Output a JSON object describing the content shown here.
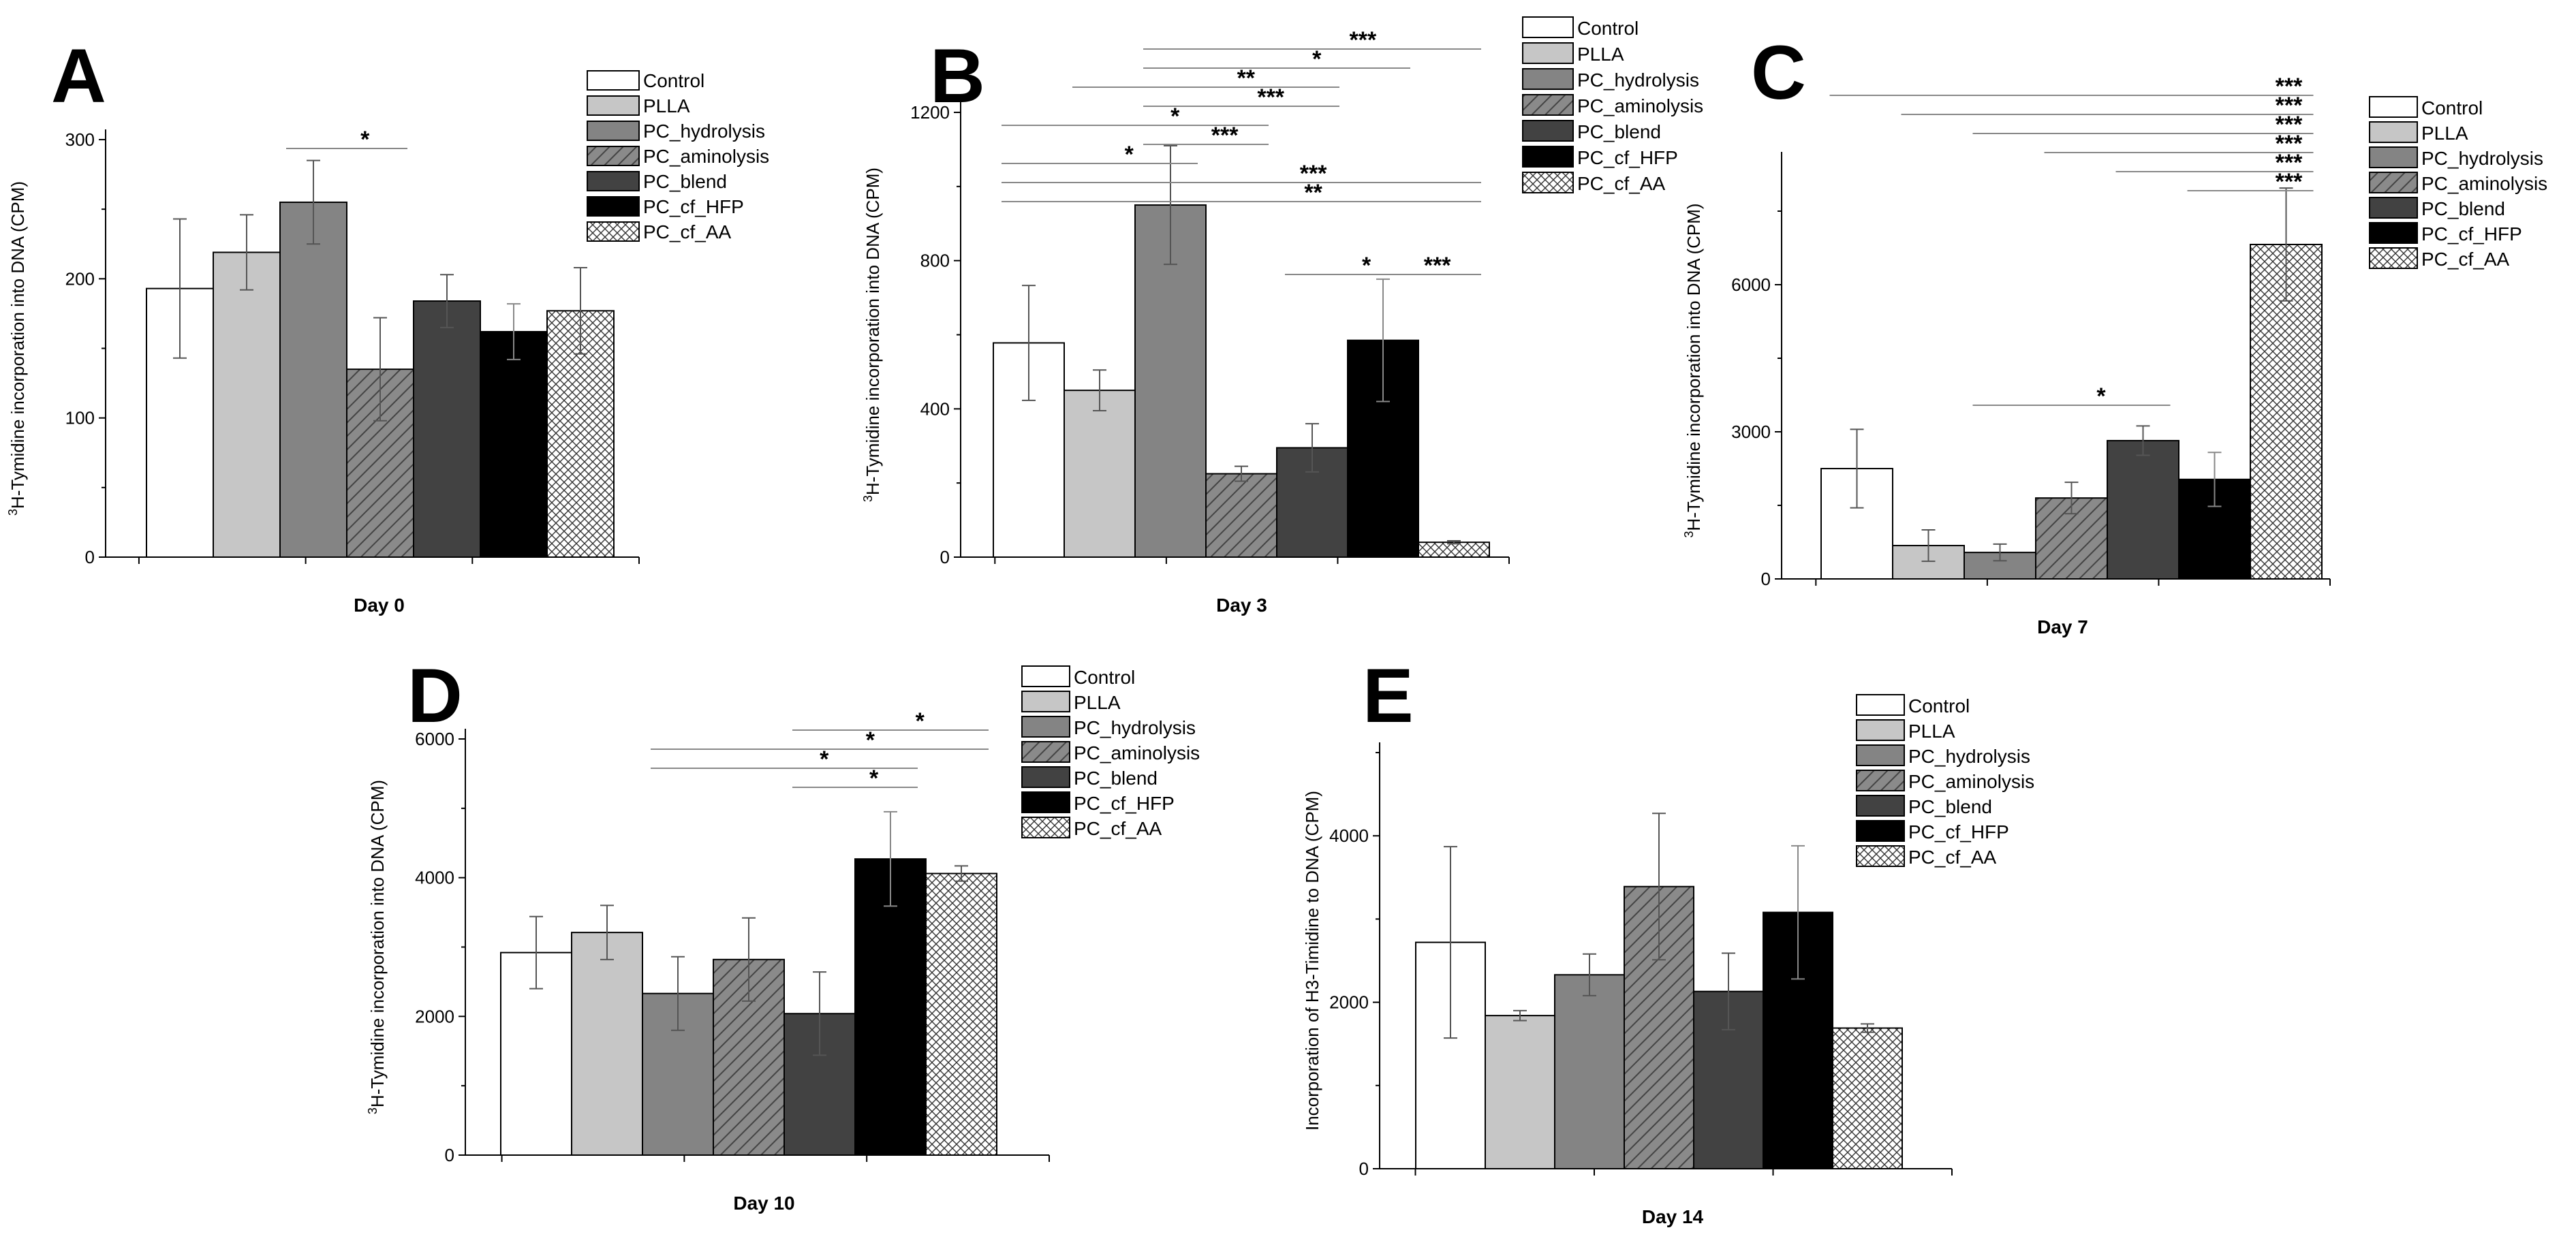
{
  "series_names": [
    "Control",
    "PLLA",
    "PC_hydrolysis",
    "PC_aminolysis",
    "PC_blend",
    "PC_cf_HFP",
    "PC_cf_AA"
  ],
  "series_styles": [
    {
      "fill": "#ffffff",
      "pattern": "none"
    },
    {
      "fill": "#c6c6c6",
      "pattern": "none"
    },
    {
      "fill": "#848484",
      "pattern": "none"
    },
    {
      "fill": "#868686",
      "pattern": "hatch"
    },
    {
      "fill": "#424242",
      "pattern": "none"
    },
    {
      "fill": "#000000",
      "pattern": "none"
    },
    {
      "fill": "#ffffff",
      "pattern": "cross"
    }
  ],
  "chart_data": [
    {
      "panel": "A",
      "type": "bar",
      "title": "",
      "xlabel": "Day 0",
      "ylabel_sup": "3",
      "ylabel": "H-Tymidine incorporation into DNA (CPM)",
      "ylim": [
        0,
        300
      ],
      "yticks": [
        0,
        100,
        200,
        300
      ],
      "values": [
        193,
        219,
        255,
        135,
        184,
        162,
        177
      ],
      "errors": [
        50,
        27,
        30,
        37,
        19,
        20,
        31
      ],
      "annotations": [
        {
          "from": 2,
          "to": 3,
          "label": "*"
        }
      ]
    },
    {
      "panel": "B",
      "type": "bar",
      "title": "",
      "xlabel": "Day 3",
      "ylabel_sup": "3",
      "ylabel": "H-Tymidine incorporation into DNA (CPM)",
      "ylim": [
        0,
        1200
      ],
      "yticks": [
        0,
        400,
        800,
        1200
      ],
      "values": [
        578,
        450,
        950,
        225,
        295,
        585,
        40
      ],
      "errors": [
        155,
        55,
        160,
        20,
        65,
        165,
        4
      ],
      "annotations": [
        {
          "from": 2,
          "to": 6,
          "label": "***"
        },
        {
          "from": 2,
          "to": 5,
          "label": "*"
        },
        {
          "from": 1,
          "to": 4,
          "label": "**"
        },
        {
          "from": 2,
          "to": 4,
          "label": "***"
        },
        {
          "from": 0,
          "to": 3,
          "label": "*"
        },
        {
          "from": 2,
          "to": 3,
          "label": "***"
        },
        {
          "from": 0,
          "to": 2,
          "label": "*"
        },
        {
          "from": 0,
          "to": 6,
          "label": "***"
        },
        {
          "from": 0,
          "to": 6,
          "label": "**"
        },
        {
          "from": 4,
          "to": 5,
          "label": "*"
        },
        {
          "from": 5,
          "to": 6,
          "label": "***"
        }
      ]
    },
    {
      "panel": "C",
      "type": "bar",
      "title": "",
      "xlabel": "Day 7",
      "ylabel_sup": "3",
      "ylabel": "H-Tymidine incorporation into DNA (CPM)",
      "ylim": [
        0,
        8500
      ],
      "yticks": [
        0,
        3000,
        6000
      ],
      "values": [
        2250,
        680,
        540,
        1650,
        2820,
        2030,
        6820
      ],
      "errors": [
        800,
        320,
        170,
        320,
        300,
        550,
        1150
      ],
      "annotations": [
        {
          "from": 0,
          "to": 6,
          "label": "***"
        },
        {
          "from": 1,
          "to": 6,
          "label": "***"
        },
        {
          "from": 2,
          "to": 6,
          "label": "***"
        },
        {
          "from": 3,
          "to": 6,
          "label": "***"
        },
        {
          "from": 4,
          "to": 6,
          "label": "***"
        },
        {
          "from": 5,
          "to": 6,
          "label": "***"
        },
        {
          "from": 2,
          "to": 4,
          "label": "*"
        }
      ]
    },
    {
      "panel": "D",
      "type": "bar",
      "title": "",
      "xlabel": "Day 10",
      "ylabel_sup": "3",
      "ylabel": "H-Tymidine incorporation into DNA (CPM)",
      "ylim": [
        0,
        6000
      ],
      "yticks": [
        0,
        2000,
        4000,
        6000
      ],
      "values": [
        2920,
        3210,
        2330,
        2820,
        2040,
        4270,
        4060
      ],
      "errors": [
        520,
        390,
        530,
        600,
        600,
        680,
        110
      ],
      "annotations": [
        {
          "from": 4,
          "to": 6,
          "label": "*"
        },
        {
          "from": 2,
          "to": 6,
          "label": "*"
        },
        {
          "from": 2,
          "to": 5,
          "label": "*"
        },
        {
          "from": 4,
          "to": 5,
          "label": "*"
        }
      ]
    },
    {
      "panel": "E",
      "type": "bar",
      "title": "",
      "xlabel": "Day 14",
      "ylabel_sup": "",
      "ylabel": "Incorporation of H3-Timidine to DNA (CPM)",
      "ylim": [
        0,
        5000
      ],
      "yticks": [
        0,
        2000,
        4000
      ],
      "values": [
        2720,
        1840,
        2330,
        3390,
        2130,
        3080,
        1690
      ],
      "errors": [
        1150,
        60,
        250,
        880,
        460,
        800,
        50
      ],
      "annotations": []
    }
  ]
}
